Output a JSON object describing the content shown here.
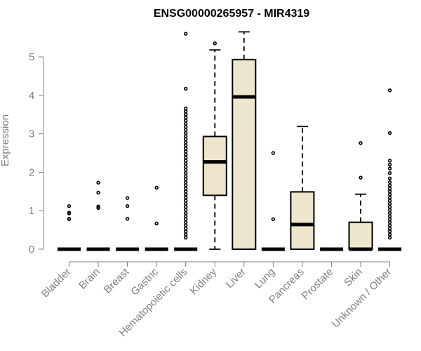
{
  "chart_data": {
    "type": "box",
    "title": "ENSG00000265957 - MIR4319",
    "xlabel": "",
    "ylabel": "Expression",
    "ylim": [
      0,
      5.6
    ],
    "yticks": [
      0,
      1,
      2,
      3,
      4,
      5
    ],
    "grid": false,
    "colors": {
      "box_fill": "#ede6cd",
      "box_stroke": "#000000",
      "axis": "#808080",
      "text": "#808080"
    },
    "categories": [
      "Bladder",
      "Brain",
      "Breast",
      "Gastric",
      "Hematopoietic cells",
      "Kidney",
      "Liver",
      "Lung",
      "Pancreas",
      "Prostate",
      "Skin",
      "Unknown / Other"
    ],
    "boxes": [
      {
        "category": "Bladder",
        "min": 0,
        "q1": 0,
        "median": 0,
        "q3": 0,
        "max": 0,
        "outliers": [
          0.78,
          0.79,
          0.93,
          0.95,
          1.12
        ]
      },
      {
        "category": "Brain",
        "min": 0,
        "q1": 0,
        "median": 0,
        "q3": 0,
        "max": 0,
        "outliers": [
          1.07,
          1.11,
          1.47,
          1.73
        ]
      },
      {
        "category": "Breast",
        "min": 0,
        "q1": 0,
        "median": 0,
        "q3": 0,
        "max": 0,
        "outliers": [
          0.79,
          1.12,
          1.33
        ]
      },
      {
        "category": "Gastric",
        "min": 0,
        "q1": 0,
        "median": 0,
        "q3": 0,
        "max": 0,
        "outliers": [
          0.67,
          1.6
        ]
      },
      {
        "category": "Hematopoietic cells",
        "min": 0,
        "q1": 0,
        "median": 0,
        "q3": 0,
        "max": 0,
        "outliers": [
          0.3,
          0.38,
          0.46,
          0.54,
          0.62,
          0.7,
          0.78,
          0.86,
          0.94,
          1.02,
          1.1,
          1.18,
          1.26,
          1.34,
          1.42,
          1.5,
          1.58,
          1.66,
          1.74,
          1.82,
          1.9,
          1.98,
          2.06,
          2.14,
          2.22,
          2.3,
          2.38,
          2.46,
          2.54,
          2.62,
          2.7,
          2.78,
          2.86,
          2.94,
          3.02,
          3.1,
          3.18,
          3.26,
          3.34,
          3.42,
          3.5,
          3.58,
          3.66,
          4.17,
          5.6
        ]
      },
      {
        "category": "Kidney",
        "min": 0,
        "q1": 1.4,
        "median": 2.27,
        "q3": 2.93,
        "max": 5.18,
        "outliers": [
          5.35
        ]
      },
      {
        "category": "Liver",
        "min": 0,
        "q1": 0,
        "median": 3.96,
        "q3": 4.93,
        "max": 5.65,
        "outliers": []
      },
      {
        "category": "Lung",
        "min": 0,
        "q1": 0,
        "median": 0,
        "q3": 0,
        "max": 0,
        "outliers": [
          0.78,
          2.5
        ]
      },
      {
        "category": "Pancreas",
        "min": 0,
        "q1": 0,
        "median": 0.64,
        "q3": 1.49,
        "max": 3.19,
        "outliers": []
      },
      {
        "category": "Prostate",
        "min": 0,
        "q1": 0,
        "median": 0,
        "q3": 0,
        "max": 0,
        "outliers": []
      },
      {
        "category": "Skin",
        "min": 0,
        "q1": 0,
        "median": 0,
        "q3": 0.7,
        "max": 1.43,
        "outliers": [
          1.86,
          2.76
        ]
      },
      {
        "category": "Unknown / Other",
        "min": 0,
        "q1": 0,
        "median": 0,
        "q3": 0,
        "max": 0,
        "outliers": [
          0.3,
          0.38,
          0.46,
          0.54,
          0.62,
          0.7,
          0.78,
          0.86,
          0.94,
          1.02,
          1.1,
          1.18,
          1.26,
          1.34,
          1.42,
          1.5,
          1.58,
          1.66,
          1.74,
          1.84,
          1.98,
          2.1,
          2.2,
          2.3,
          3.02,
          4.13
        ]
      }
    ]
  }
}
